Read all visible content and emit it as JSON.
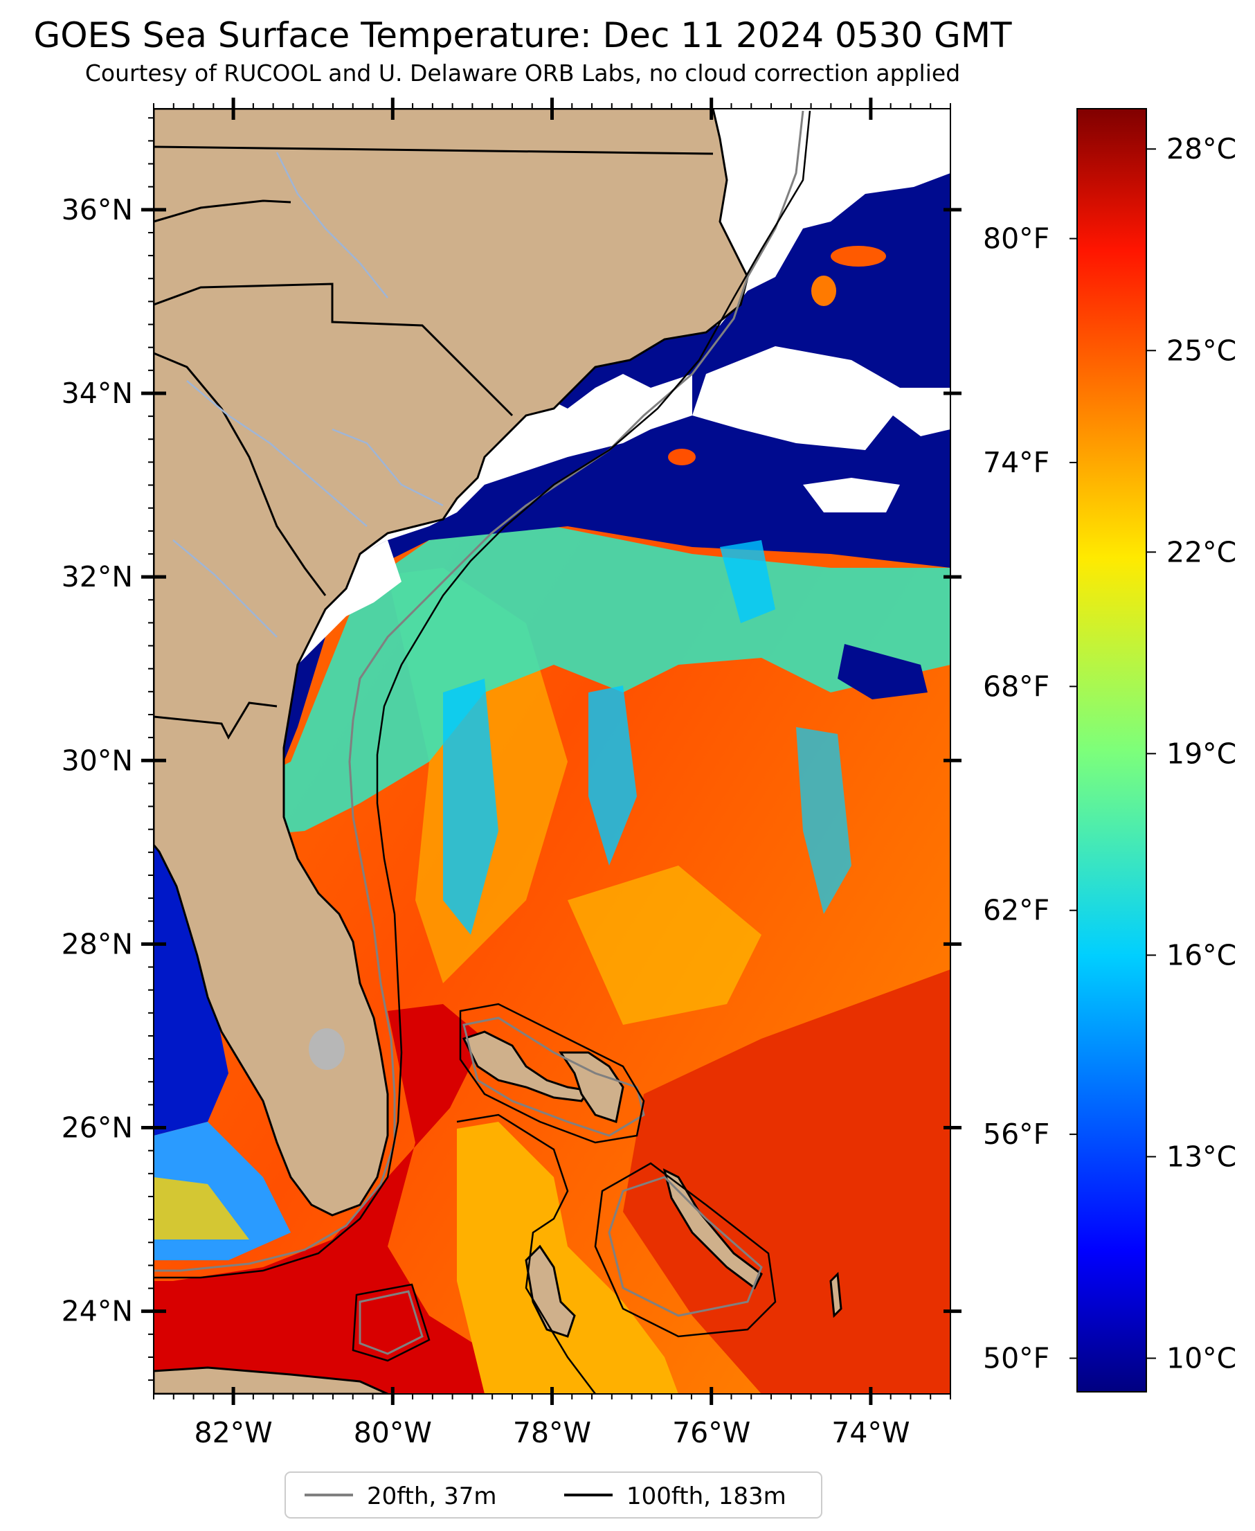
{
  "title": "GOES Sea Surface Temperature: Dec 11 2024 0530 GMT",
  "subtitle": "Courtesy of RUCOOL and U. Delaware ORB Labs, no cloud correction applied",
  "map": {
    "lon_range": [
      -83,
      -73
    ],
    "lat_range": [
      23.1,
      37.1
    ],
    "lat_ticks": [
      "36°N",
      "34°N",
      "32°N",
      "30°N",
      "28°N",
      "26°N",
      "24°N"
    ],
    "lon_ticks": [
      "82°W",
      "80°W",
      "78°W",
      "76°W",
      "74°W"
    ],
    "colors": {
      "land": "#cfb08b",
      "cloud": "#ffffff",
      "cold": "#000b8f",
      "warm": "#ff5a00",
      "hot": "#d70000",
      "isobath_20": "#808080",
      "isobath_100": "#000000",
      "rivers": "#9fb5d6"
    }
  },
  "colorbar": {
    "celsius_ticks": [
      "28°C",
      "25°C",
      "22°C",
      "19°C",
      "16°C",
      "13°C",
      "10°C"
    ],
    "fahrenheit_ticks": [
      "80°F",
      "74°F",
      "68°F",
      "62°F",
      "56°F",
      "50°F"
    ],
    "colormap": "jet"
  },
  "legend": {
    "items": [
      {
        "label": "20fth, 37m",
        "color": "#808080"
      },
      {
        "label": "100fth, 183m",
        "color": "#000000"
      }
    ]
  }
}
